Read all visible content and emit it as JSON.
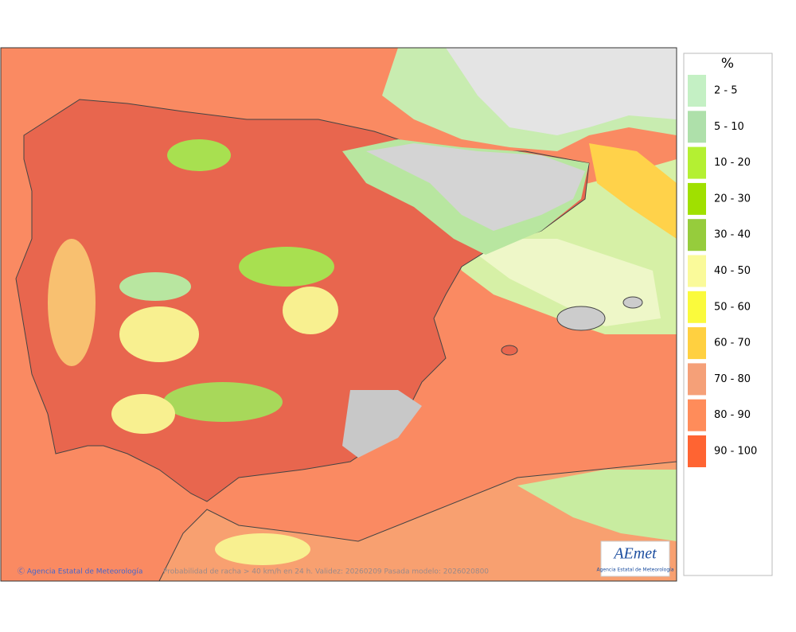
{
  "legend": {
    "title": "%",
    "items": [
      {
        "label": "2 - 5",
        "color": "#c4f0c4"
      },
      {
        "label": "5 - 10",
        "color": "#aee0aa"
      },
      {
        "label": "10 - 20",
        "color": "#b4f032"
      },
      {
        "label": "20 - 30",
        "color": "#a0e000"
      },
      {
        "label": "30 - 40",
        "color": "#96cc3c"
      },
      {
        "label": "40 - 50",
        "color": "#fafa9a"
      },
      {
        "label": "50 - 60",
        "color": "#fafa3c"
      },
      {
        "label": "60 - 70",
        "color": "#ffd040"
      },
      {
        "label": "70 - 80",
        "color": "#f5a078"
      },
      {
        "label": "80 - 90",
        "color": "#ff8c5a"
      },
      {
        "label": "90 - 100",
        "color": "#ff6432"
      }
    ]
  },
  "footer": {
    "credit": "Ⓒ Agencia Estatal de Meteorología",
    "caption": "Probabilidad de racha > 40 km/h en 24 h. Validez: 20260209 Pasada modelo: 2026020800"
  },
  "logo": {
    "text": "AEmet",
    "subtitle": "Agencia Estatal de Meteorología"
  }
}
